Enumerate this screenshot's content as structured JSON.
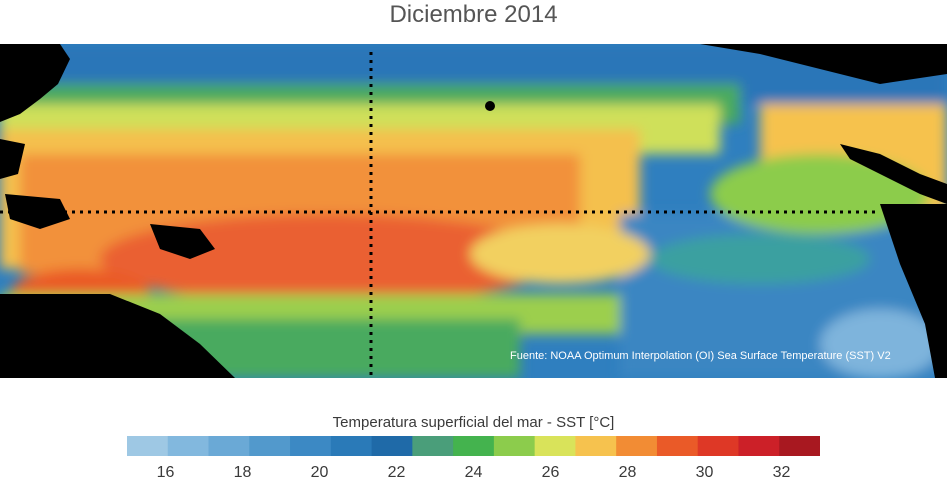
{
  "title": "Diciembre 2014",
  "source_note": "Fuente: NOAA Optimum Interpolation (OI) Sea Surface Temperature (SST) V2",
  "colorbar": {
    "label": "Temperatura superficial del mar - SST  [°C]",
    "range": [
      15,
      33
    ],
    "ticks": [
      16,
      18,
      20,
      22,
      24,
      26,
      28,
      30,
      32
    ],
    "colors": [
      "#9ec8e4",
      "#82b8de",
      "#6aa9d6",
      "#5299cc",
      "#3c89c4",
      "#2a7ab8",
      "#1f6aa8",
      "#4a9e7a",
      "#44b34e",
      "#8ccc4c",
      "#d9e35a",
      "#f6c24e",
      "#f28c34",
      "#ea5a28",
      "#de3826",
      "#cc2028",
      "#a81820"
    ]
  },
  "map": {
    "equator_line": "dotted",
    "meridian_line": "dotted"
  }
}
